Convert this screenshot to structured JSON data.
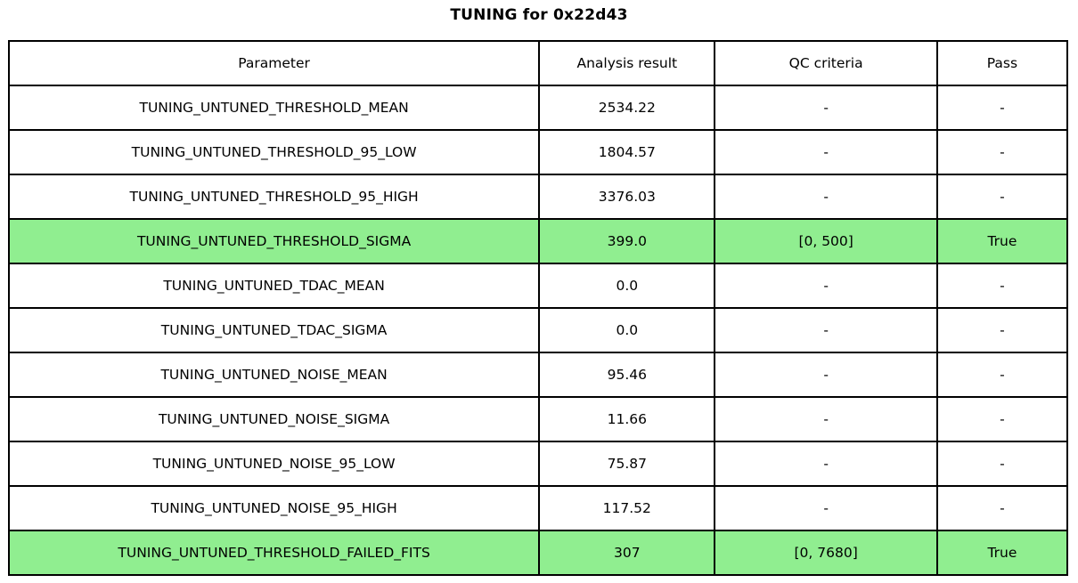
{
  "title": "TUNING for 0x22d43",
  "colors": {
    "pass_green": "#90EE90",
    "border": "#000000",
    "background": "#FFFFFF"
  },
  "chart_data": {
    "type": "table",
    "title": "TUNING for 0x22d43",
    "columns": [
      "Parameter",
      "Analysis result",
      "QC criteria",
      "Pass"
    ],
    "rows": [
      {
        "cells": [
          "TUNING_UNTUNED_THRESHOLD_MEAN",
          "2534.22",
          "-",
          "-"
        ],
        "highlight": false
      },
      {
        "cells": [
          "TUNING_UNTUNED_THRESHOLD_95_LOW",
          "1804.57",
          "-",
          "-"
        ],
        "highlight": false
      },
      {
        "cells": [
          "TUNING_UNTUNED_THRESHOLD_95_HIGH",
          "3376.03",
          "-",
          "-"
        ],
        "highlight": false
      },
      {
        "cells": [
          "TUNING_UNTUNED_THRESHOLD_SIGMA",
          "399.0",
          "[0, 500]",
          "True"
        ],
        "highlight": true
      },
      {
        "cells": [
          "TUNING_UNTUNED_TDAC_MEAN",
          "0.0",
          "-",
          "-"
        ],
        "highlight": false
      },
      {
        "cells": [
          "TUNING_UNTUNED_TDAC_SIGMA",
          "0.0",
          "-",
          "-"
        ],
        "highlight": false
      },
      {
        "cells": [
          "TUNING_UNTUNED_NOISE_MEAN",
          "95.46",
          "-",
          "-"
        ],
        "highlight": false
      },
      {
        "cells": [
          "TUNING_UNTUNED_NOISE_SIGMA",
          "11.66",
          "-",
          "-"
        ],
        "highlight": false
      },
      {
        "cells": [
          "TUNING_UNTUNED_NOISE_95_LOW",
          "75.87",
          "-",
          "-"
        ],
        "highlight": false
      },
      {
        "cells": [
          "TUNING_UNTUNED_NOISE_95_HIGH",
          "117.52",
          "-",
          "-"
        ],
        "highlight": false
      },
      {
        "cells": [
          "TUNING_UNTUNED_THRESHOLD_FAILED_FITS",
          "307",
          "[0, 7680]",
          "True"
        ],
        "highlight": true
      }
    ]
  }
}
